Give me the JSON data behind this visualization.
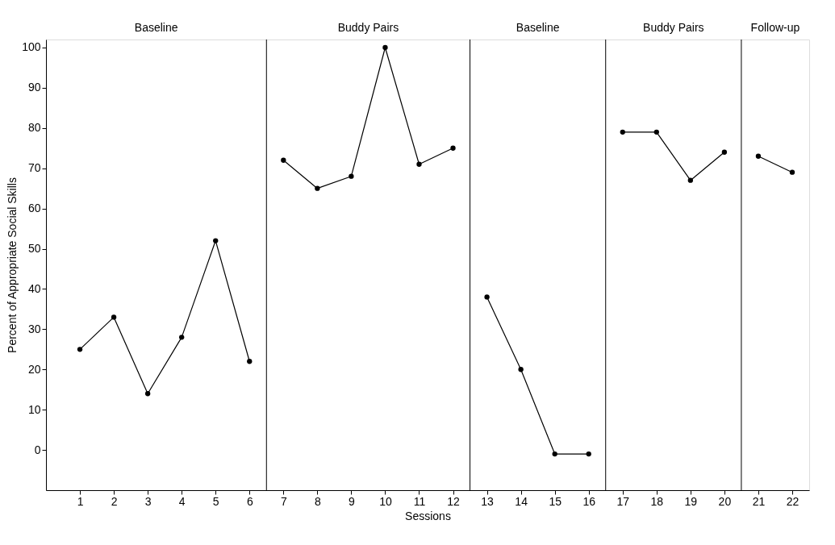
{
  "chart_data": {
    "type": "line",
    "xlabel": "Sessions",
    "ylabel": "Percent of Appropriate Social Skills",
    "xlim": [
      0,
      22.5
    ],
    "xticks": [
      1,
      2,
      3,
      4,
      5,
      6,
      7,
      8,
      9,
      10,
      11,
      12,
      13,
      14,
      15,
      16,
      17,
      18,
      19,
      20,
      21,
      22
    ],
    "ylim": [
      -10,
      102
    ],
    "yticks": [
      0,
      10,
      20,
      30,
      40,
      50,
      60,
      70,
      80,
      90,
      100
    ],
    "series": [
      {
        "color": "#000000",
        "x": [
          1,
          2,
          3,
          4,
          5,
          6
        ],
        "values": [
          25,
          33,
          14,
          28,
          52,
          22
        ]
      },
      {
        "color": "#000000",
        "x": [
          7,
          8,
          9,
          10,
          11,
          12
        ],
        "values": [
          72,
          65,
          68,
          100,
          71,
          75
        ]
      },
      {
        "color": "#000000",
        "x": [
          13,
          14,
          15,
          16
        ],
        "values": [
          38,
          20,
          -1,
          -1
        ]
      },
      {
        "color": "#000000",
        "x": [
          17,
          18,
          19,
          20
        ],
        "values": [
          79,
          79,
          67,
          74
        ]
      },
      {
        "color": "#000000",
        "x": [
          21,
          22
        ],
        "values": [
          73,
          69
        ]
      }
    ],
    "ref_lines": [
      {
        "axis": "x",
        "value": 6.5,
        "color": "#000000"
      },
      {
        "axis": "x",
        "value": 12.5,
        "color": "#000000"
      },
      {
        "axis": "x",
        "value": 16.5,
        "color": "#000000"
      },
      {
        "axis": "x",
        "value": 20.5,
        "color": "#000000"
      }
    ],
    "annotations": [
      "Baseline",
      "Buddy Pairs",
      "Baseline",
      "Buddy Pairs",
      "Follow-up"
    ],
    "marker": "circle",
    "line_style": "solid",
    "grid": false
  }
}
